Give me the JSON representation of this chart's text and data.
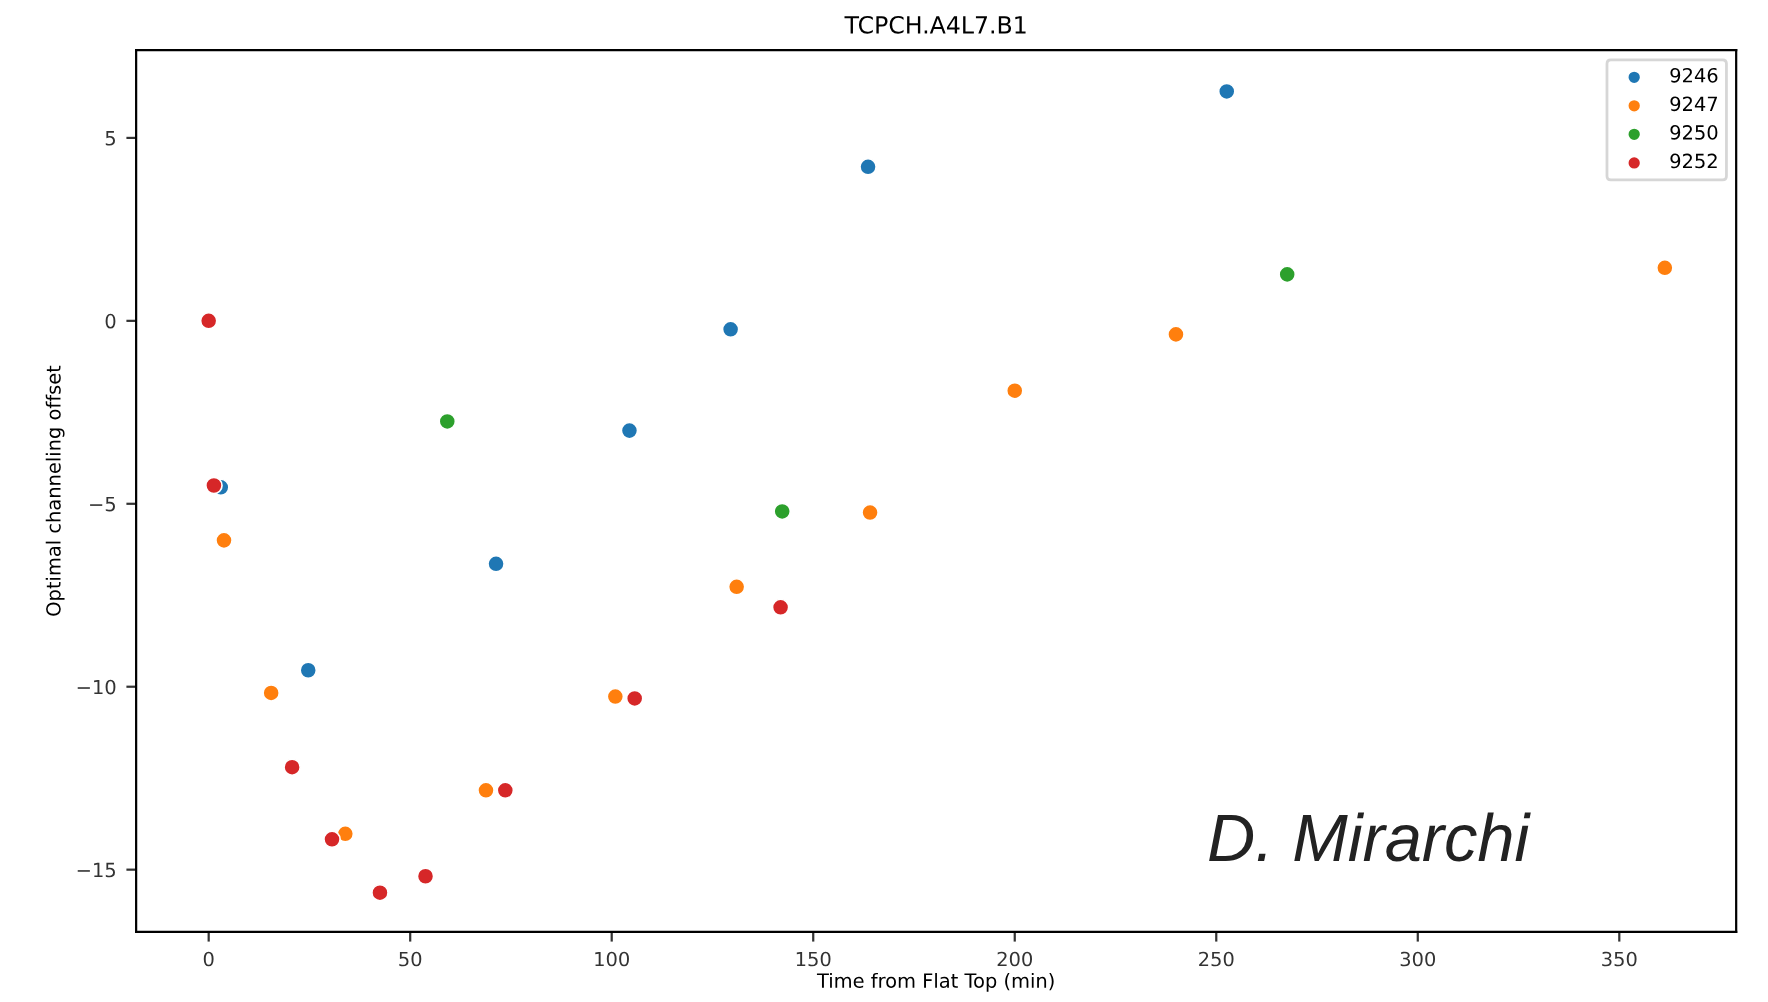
{
  "chart_data": {
    "type": "scatter",
    "title": "TCPCH.A4L7.B1",
    "xlabel": "Time from Flat Top (min)",
    "ylabel": "Optimal channeling offset",
    "xlim": [
      -18,
      379
    ],
    "ylim": [
      -16.7,
      7.4
    ],
    "xticks": [
      0,
      50,
      100,
      150,
      200,
      250,
      300,
      350
    ],
    "yticks": [
      -15,
      -10,
      -5,
      0,
      5
    ],
    "legend": "top right",
    "grid": false,
    "marker": "circle",
    "annotations": [
      "D. Mirarchi"
    ],
    "series": [
      {
        "name": "9246",
        "color": "#1f77b4",
        "x": [
          3.0,
          24.7,
          71.3,
          104.4,
          129.5,
          163.6,
          252.6
        ],
        "values": [
          -4.55,
          -9.55,
          -6.64,
          -3.0,
          -0.23,
          4.21,
          6.27
        ]
      },
      {
        "name": "9247",
        "color": "#ff7f0e",
        "x": [
          3.8,
          15.5,
          33.9,
          68.8,
          100.9,
          131,
          164.1,
          200,
          240,
          361.3
        ],
        "values": [
          -6.0,
          -10.17,
          -14.02,
          -12.83,
          -10.27,
          -7.27,
          -5.24,
          -1.91,
          -0.37,
          1.45
        ]
      },
      {
        "name": "9250",
        "color": "#2ca02c",
        "x": [
          59.2,
          142.3,
          267.6
        ],
        "values": [
          -2.75,
          -5.21,
          1.27
        ]
      },
      {
        "name": "9252",
        "color": "#d62728",
        "x": [
          0,
          1.3,
          20.7,
          30.6,
          42.5,
          53.8,
          73.6,
          105.7,
          141.9
        ],
        "values": [
          0,
          -4.5,
          -12.2,
          -14.17,
          -15.63,
          -15.18,
          -12.83,
          -10.32,
          -7.83
        ]
      }
    ]
  }
}
